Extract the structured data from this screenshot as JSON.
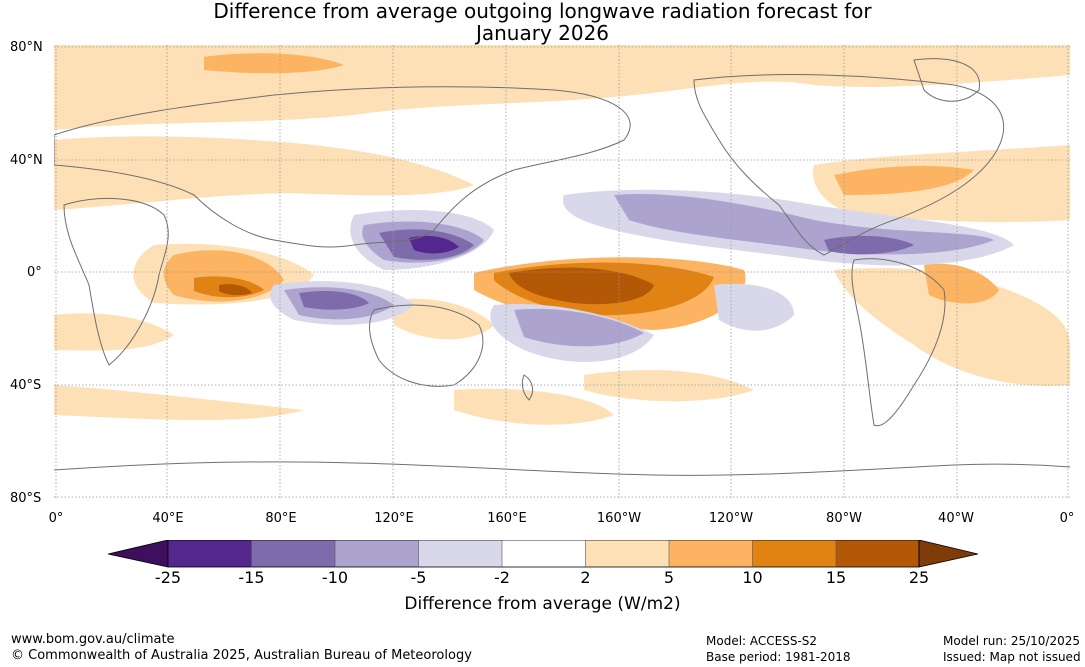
{
  "title": {
    "line1": "Difference from average outgoing longwave radiation forecast for",
    "line2": "January 2026"
  },
  "map": {
    "lat_labels": [
      "80°N",
      "40°N",
      "0°",
      "40°S",
      "80°S"
    ],
    "lon_labels": [
      "0°",
      "40°E",
      "80°E",
      "120°E",
      "160°E",
      "160°W",
      "120°W",
      "80°W",
      "40°W",
      "0°"
    ],
    "colors": {
      "ocean": "#ffffff",
      "coast": "#6f6f6f",
      "grid": "#999999"
    }
  },
  "colorbar": {
    "ticks": [
      "-25",
      "-15",
      "-10",
      "-5",
      "-2",
      "2",
      "5",
      "10",
      "15",
      "25"
    ],
    "colors": [
      "#3d0f5c",
      "#54278f",
      "#7e6bab",
      "#aca4cf",
      "#d9d8ea",
      "#ffffff",
      "#fde0b6",
      "#fdb462",
      "#e08214",
      "#b35806",
      "#7f3b08"
    ],
    "label": "Difference from average (W/m2)"
  },
  "footer": {
    "url": "www.bom.gov.au/climate",
    "copyright": "© Commonwealth of Australia 2025, Australian Bureau of Meteorology",
    "model": "Model: ACCESS-S2",
    "base_period": "Base period: 1981-2018",
    "model_run": "Model run: 25/10/2025",
    "issued": "Issued: Map not issued"
  }
}
